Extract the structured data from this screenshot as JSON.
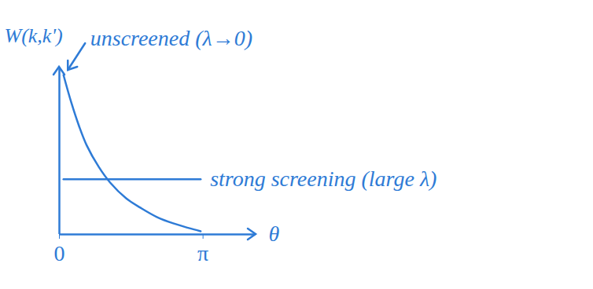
{
  "chart_data": {
    "type": "line",
    "x": [
      0.09,
      0.26,
      0.43,
      0.6,
      0.86,
      1.11,
      1.46,
      1.8,
      2.14,
      2.49,
      2.83,
      3.09
    ],
    "xlim": [
      0,
      4.3
    ],
    "xticks": [
      0,
      {
        "value": 3.1416,
        "label": "π"
      }
    ],
    "ylim": [
      0,
      10
    ],
    "xlabel": "θ",
    "ylabel": "W(k,k')",
    "tick_labels": "x",
    "series": [
      {
        "name": "unscreened (λ→0)",
        "color": "#2e7bd6",
        "line_style": "solid",
        "values": [
          9.53,
          7.89,
          6.48,
          5.31,
          4.04,
          3.1,
          2.16,
          1.55,
          1.03,
          0.66,
          0.38,
          0.19
        ]
      },
      {
        "name": "strong screening (large λ)",
        "color": "#2e7bd6",
        "line_style": "solid",
        "values": [
          3.3,
          3.3,
          3.3,
          3.3,
          3.3,
          3.3,
          3.3,
          3.3,
          3.3,
          3.3,
          3.3,
          3.3
        ]
      }
    ]
  }
}
